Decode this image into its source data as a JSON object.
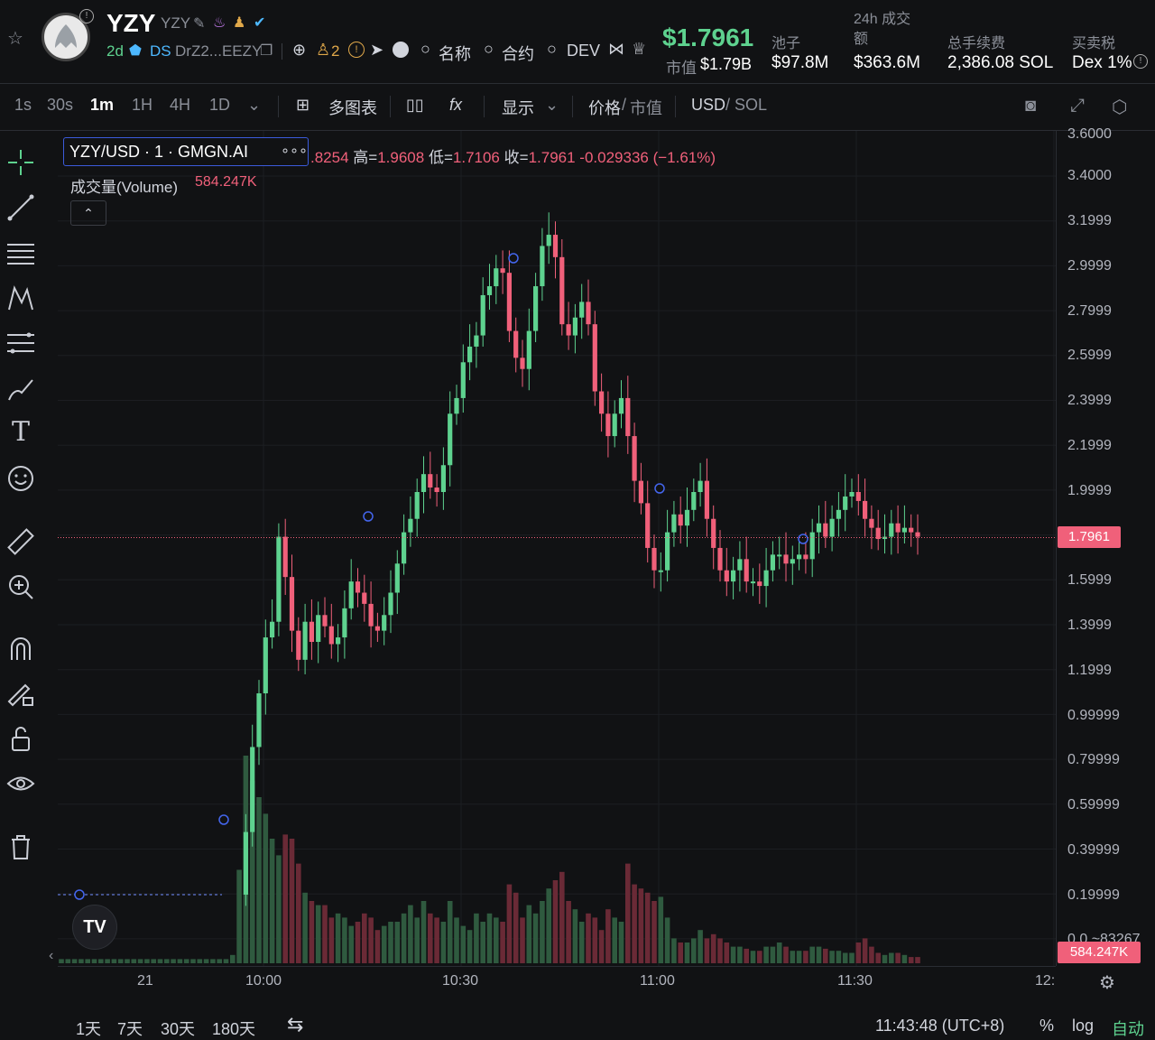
{
  "header": {
    "token_symbol": "YZY",
    "token_sub": "YZY",
    "age": "2d",
    "ds_label": "DS",
    "address": "DrZ2...EEZY",
    "holders_count": "2",
    "links": [
      "名称",
      "合约",
      "DEV"
    ],
    "price": "$1.7961",
    "mcap_label": "市值",
    "mcap_value": "$1.79B",
    "stats": [
      {
        "label": "池子",
        "value": "$97.8M"
      },
      {
        "label": "24h 成交额",
        "value": "$363.6M"
      },
      {
        "label": "总手续费",
        "value": "2,386.08 SOL"
      },
      {
        "label": "买卖税",
        "value": "Dex 1%"
      }
    ]
  },
  "toolbar": {
    "intervals": [
      "1s",
      "30s",
      "1m",
      "1H",
      "4H",
      "1D"
    ],
    "active_interval": "1m",
    "multi_chart": "多图表",
    "display": "显示",
    "price_label": "价格",
    "mcap_label": "市值",
    "usd_label": "USD",
    "sol_label": "SOL"
  },
  "legend": {
    "pair": "YZY/USD · 1 · GMGN.AI",
    "ohlc_open": ".8254",
    "high_label": "高=",
    "high": "1.9608",
    "low_label": "低=",
    "low": "1.7106",
    "close_label": "收=",
    "close": "1.7961",
    "change": "-0.029336 (−1.61%)",
    "volume_label": "成交量(Volume)",
    "volume_value": "584.247K"
  },
  "y_axis_labels": [
    "3.6000",
    "3.4000",
    "3.1999",
    "2.9999",
    "2.7999",
    "2.5999",
    "2.3999",
    "2.1999",
    "1.9999",
    "1.5999",
    "1.3999",
    "1.1999",
    "0.99999",
    "0.79999",
    "0.59999",
    "0.39999",
    "0.19999",
    "0.0 ~83267"
  ],
  "current_price_label": "1.7961",
  "volume_label_box": "584.247K",
  "x_axis_labels": [
    "21",
    "10:00",
    "10:30",
    "11:00",
    "11:30",
    "12:"
  ],
  "bottom": {
    "ranges": [
      "1天",
      "7天",
      "30天",
      "180天"
    ],
    "clock": "11:43:48 (UTC+8)",
    "percent": "%",
    "log": "log",
    "auto": "自动"
  },
  "colors": {
    "up": "#5ed28f",
    "down": "#f0607a",
    "bg": "#111214"
  },
  "chart_data": {
    "type": "candlestick",
    "interval": "1m",
    "x_ticks": [
      "21",
      "10:00",
      "10:30",
      "11:00",
      "11:30",
      "12:"
    ],
    "ylim": [
      0.0,
      3.6
    ],
    "last_price": 1.7961,
    "candles_close": [
      0.2,
      0.2,
      0.2,
      0.2,
      0.2,
      0.2,
      0.2,
      0.2,
      0.2,
      0.2,
      0.2,
      0.2,
      0.2,
      0.2,
      0.2,
      0.2,
      0.2,
      0.2,
      0.2,
      0.2,
      0.2,
      0.2,
      0.2,
      0.2,
      0.2,
      0.2,
      0.2,
      0.2,
      0.48,
      0.86,
      1.1,
      1.35,
      1.42,
      1.8,
      1.62,
      1.38,
      1.25,
      1.42,
      1.33,
      1.45,
      1.4,
      1.32,
      1.35,
      1.48,
      1.6,
      1.55,
      1.5,
      1.4,
      1.38,
      1.45,
      1.55,
      1.68,
      1.82,
      1.88,
      2.0,
      2.08,
      2.02,
      2.0,
      2.12,
      2.35,
      2.42,
      2.58,
      2.65,
      2.7,
      2.88,
      2.92,
      3.0,
      2.98,
      2.72,
      2.6,
      2.55,
      2.72,
      2.92,
      3.1,
      3.15,
      3.05,
      2.75,
      2.7,
      2.78,
      2.85,
      2.75,
      2.45,
      2.35,
      2.25,
      2.35,
      2.42,
      2.25,
      2.05,
      1.95,
      1.75,
      1.65,
      1.65,
      1.82,
      1.9,
      1.85,
      1.92,
      2.0,
      2.05,
      1.88,
      1.75,
      1.65,
      1.6,
      1.65,
      1.7,
      1.6,
      1.6,
      1.58,
      1.65,
      1.72,
      1.72,
      1.68,
      1.7,
      1.72,
      1.7,
      1.82,
      1.86,
      1.8,
      1.88,
      1.92,
      1.98,
      2.0,
      1.96,
      1.88,
      1.84,
      1.79,
      1.8,
      1.86,
      1.82,
      1.84,
      1.82,
      1.8
    ],
    "volume_relative": [
      0.02,
      0.02,
      0.02,
      0.02,
      0.02,
      0.02,
      0.02,
      0.02,
      0.02,
      0.02,
      0.02,
      0.02,
      0.02,
      0.02,
      0.02,
      0.02,
      0.02,
      0.02,
      0.02,
      0.02,
      0.02,
      0.02,
      0.02,
      0.02,
      0.02,
      0.02,
      0.04,
      0.45,
      1.0,
      0.88,
      0.8,
      0.72,
      0.6,
      0.52,
      0.62,
      0.6,
      0.48,
      0.34,
      0.3,
      0.28,
      0.28,
      0.22,
      0.24,
      0.22,
      0.18,
      0.2,
      0.24,
      0.22,
      0.16,
      0.18,
      0.2,
      0.2,
      0.24,
      0.28,
      0.22,
      0.3,
      0.24,
      0.22,
      0.2,
      0.3,
      0.22,
      0.18,
      0.16,
      0.24,
      0.2,
      0.24,
      0.22,
      0.2,
      0.38,
      0.34,
      0.22,
      0.28,
      0.24,
      0.3,
      0.36,
      0.4,
      0.44,
      0.3,
      0.26,
      0.2,
      0.24,
      0.22,
      0.16,
      0.26,
      0.22,
      0.2,
      0.48,
      0.38,
      0.36,
      0.34,
      0.3,
      0.32,
      0.22,
      0.12,
      0.1,
      0.1,
      0.12,
      0.16,
      0.12,
      0.14,
      0.12,
      0.1,
      0.08,
      0.08,
      0.07,
      0.06,
      0.06,
      0.08,
      0.08,
      0.1,
      0.08,
      0.06,
      0.06,
      0.06,
      0.08,
      0.08,
      0.07,
      0.06,
      0.06,
      0.05,
      0.05,
      0.1,
      0.12,
      0.08,
      0.05,
      0.04,
      0.05,
      0.05,
      0.04,
      0.03,
      0.03
    ]
  }
}
